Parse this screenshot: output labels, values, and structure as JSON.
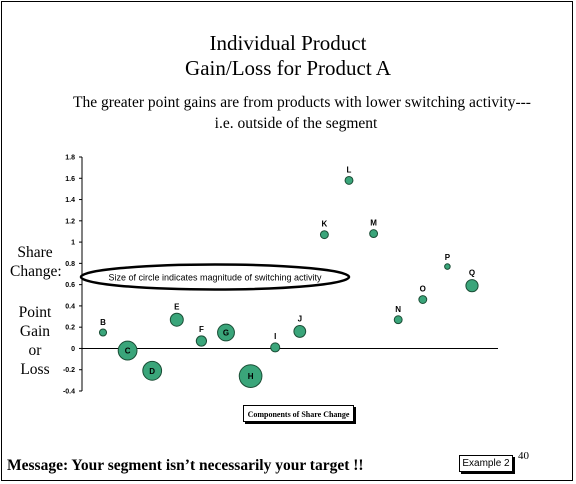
{
  "slide": {
    "title_line1": "Individual Product",
    "title_line2": "Gain/Loss for Product A",
    "subtitle_line1": "The greater point gains are from products with lower switching activity---",
    "subtitle_line2": "i.e. outside of the segment",
    "ylabel_share_line1": "Share",
    "ylabel_share_line2": "Change:",
    "ylabel_point_lines": [
      "Point",
      "Gain",
      "or",
      "Loss"
    ],
    "message": "Message:  Your segment isn’t necessarily your target !!",
    "example_label": "Example 2",
    "page_number": "40"
  },
  "chart_data": {
    "type": "scatter",
    "xlabel": "Components of Share Change",
    "ylabel": "Share Change: Point Gain or Loss",
    "ylim": [
      -0.4,
      1.8
    ],
    "yticks": [
      "1.8",
      "1.6",
      "1.4",
      "1.2",
      "1",
      "0.8",
      "0.6",
      "0.4",
      "0.2",
      "0",
      "-0.2",
      "-0.4"
    ],
    "annotation": "Size of circle indicates magnitude of switching activity",
    "grid": false,
    "legend": "none",
    "colors": {
      "bubble_fill": "#3aa57a",
      "bubble_stroke": "#1a4d35"
    },
    "points": [
      {
        "label": "B",
        "x": 1,
        "y": 0.15,
        "size": 1
      },
      {
        "label": "C",
        "x": 2,
        "y": -0.02,
        "size": 4
      },
      {
        "label": "D",
        "x": 3,
        "y": -0.21,
        "size": 4
      },
      {
        "label": "E",
        "x": 4,
        "y": 0.27,
        "size": 2.5
      },
      {
        "label": "F",
        "x": 5,
        "y": 0.07,
        "size": 1.8
      },
      {
        "label": "G",
        "x": 6,
        "y": 0.15,
        "size": 3.5
      },
      {
        "label": "H",
        "x": 7,
        "y": -0.26,
        "size": 5
      },
      {
        "label": "I",
        "x": 8,
        "y": 0.01,
        "size": 1.5
      },
      {
        "label": "J",
        "x": 9,
        "y": 0.16,
        "size": 2.2
      },
      {
        "label": "K",
        "x": 10,
        "y": 1.07,
        "size": 1.2
      },
      {
        "label": "L",
        "x": 11,
        "y": 1.58,
        "size": 1.2
      },
      {
        "label": "M",
        "x": 12,
        "y": 1.08,
        "size": 1.2
      },
      {
        "label": "N",
        "x": 13,
        "y": 0.27,
        "size": 1.2
      },
      {
        "label": "O",
        "x": 14,
        "y": 0.46,
        "size": 1.2
      },
      {
        "label": "P",
        "x": 15,
        "y": 0.77,
        "size": 0.6
      },
      {
        "label": "Q",
        "x": 16,
        "y": 0.59,
        "size": 2.3
      }
    ]
  }
}
